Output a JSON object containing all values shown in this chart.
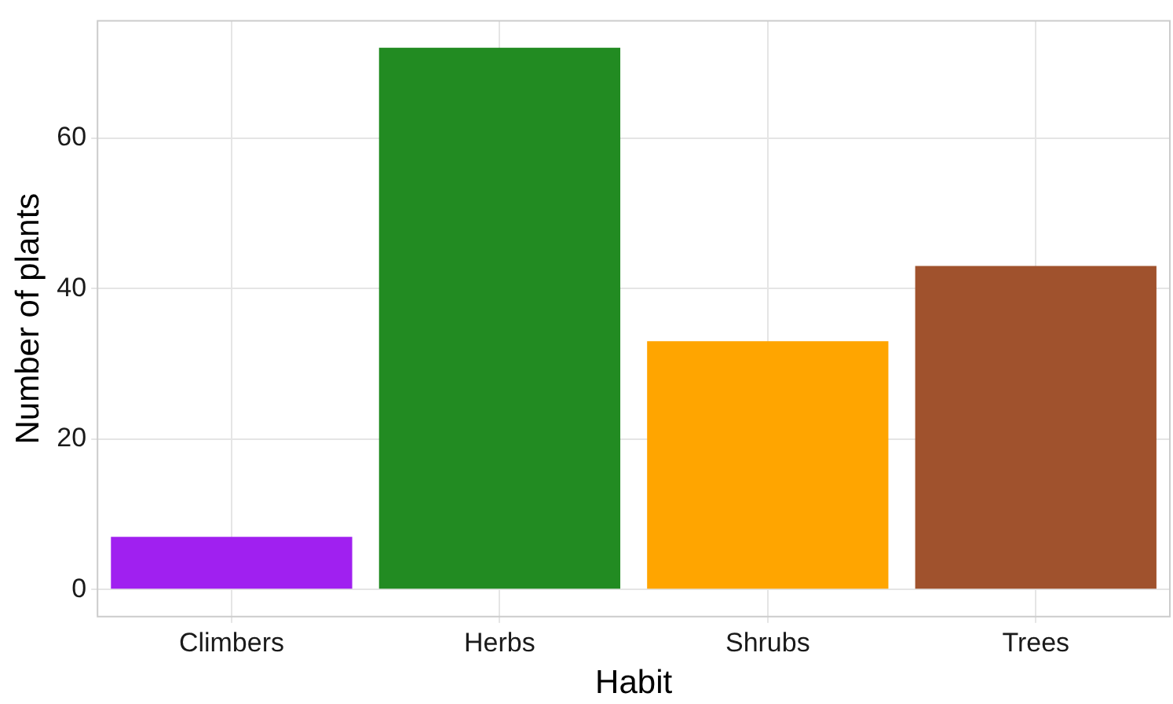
{
  "chart_data": {
    "type": "bar",
    "xlabel": "Habit",
    "ylabel": "Number of plants",
    "categories": [
      "Climbers",
      "Herbs",
      "Shrubs",
      "Trees"
    ],
    "values": [
      7,
      72,
      33,
      43
    ],
    "colors": [
      "#a020f0",
      "#228b22",
      "#ffa500",
      "#a0522d"
    ],
    "ylim": [
      -3.6,
      75.6
    ],
    "yticks": [
      0,
      20,
      40,
      60
    ],
    "grid": true
  }
}
